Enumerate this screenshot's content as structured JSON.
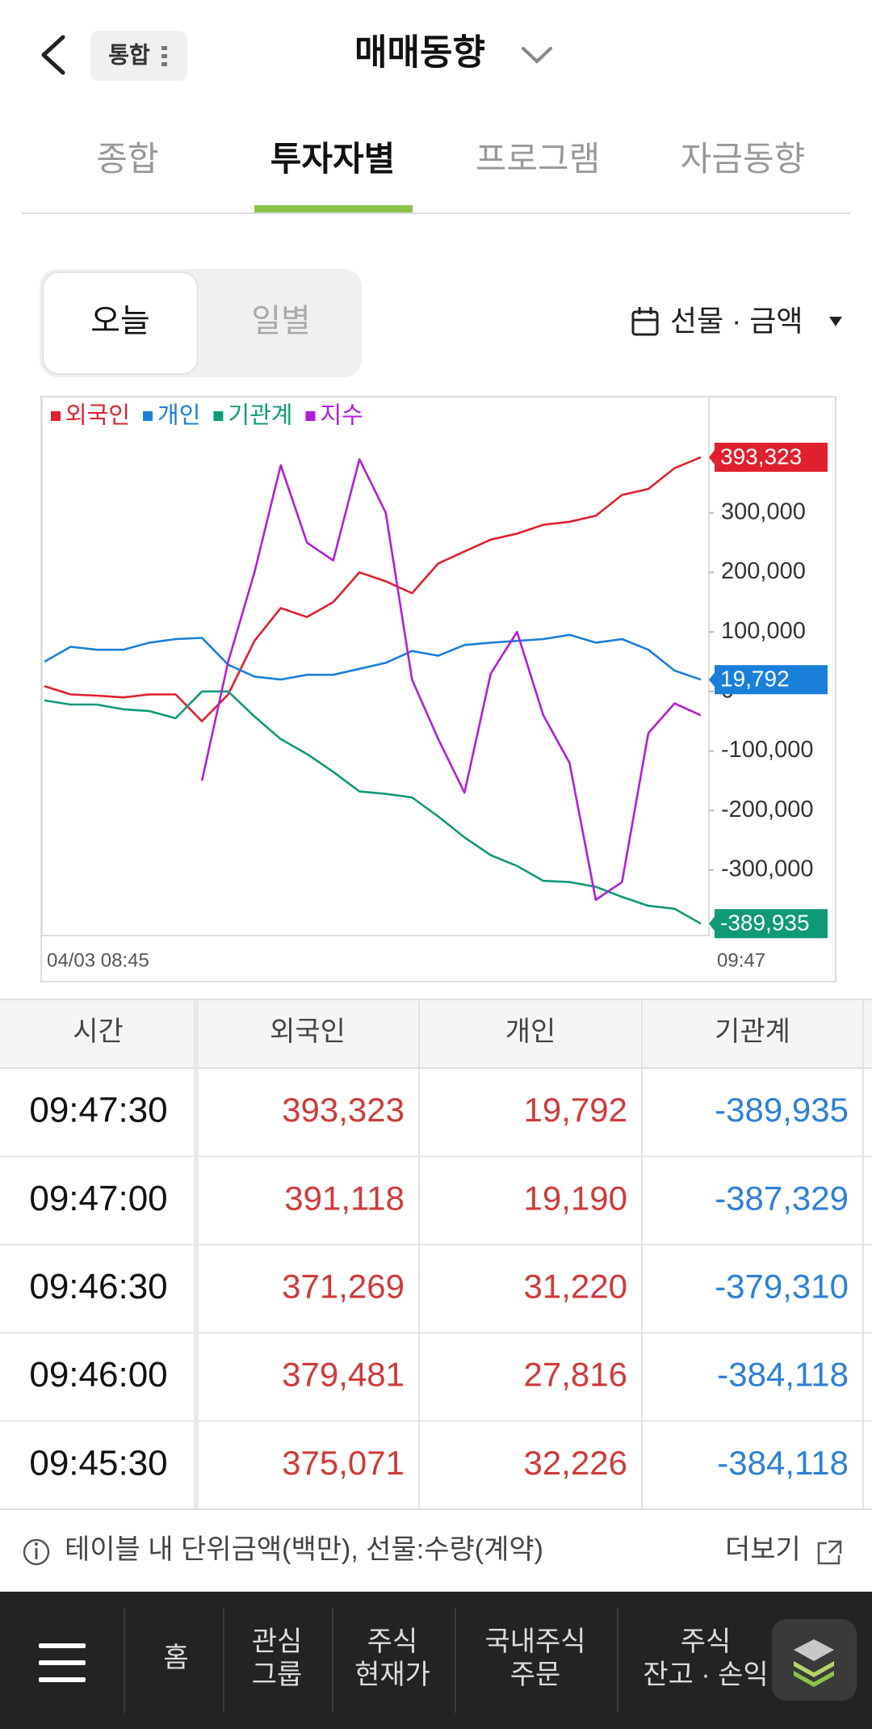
{
  "header": {
    "badge": "통합",
    "title": "매매동향"
  },
  "tabs": [
    "종합",
    "투자자별",
    "프로그램",
    "자금동향"
  ],
  "segment": [
    "오늘",
    "일별"
  ],
  "dropdown": "선물 · 금액",
  "chart_data": {
    "type": "line",
    "categories": [
      "04/03 08:45",
      null,
      null,
      null,
      null,
      null,
      null,
      null,
      null,
      null,
      null,
      null,
      null,
      null,
      null,
      null,
      null,
      null,
      null,
      null,
      null,
      null,
      null,
      null,
      null,
      "09:47"
    ],
    "series": [
      {
        "name": "외국인",
        "color": "#e0202e",
        "values": [
          9000,
          -5000,
          -7000,
          -10000,
          -5000,
          -5000,
          -50000,
          -5000,
          85000,
          140000,
          125000,
          150000,
          200000,
          185000,
          165000,
          215000,
          235000,
          255000,
          265000,
          280000,
          285000,
          295000,
          330000,
          340000,
          375000,
          393323
        ],
        "value_labels": [
          null,
          null,
          null,
          null,
          null,
          null,
          null,
          null,
          null,
          null,
          null,
          null,
          null,
          null,
          null,
          null,
          null,
          null,
          null,
          null,
          null,
          null,
          null,
          null,
          null,
          "393,323"
        ]
      },
      {
        "name": "개인",
        "color": "#1a7fd8",
        "values": [
          50000,
          75000,
          70000,
          70000,
          82000,
          88000,
          90000,
          45000,
          25000,
          20000,
          28000,
          28000,
          38000,
          48000,
          68000,
          60000,
          78000,
          82000,
          85000,
          88000,
          95000,
          82000,
          88000,
          70000,
          35000,
          19792
        ],
        "value_labels": [
          null,
          null,
          null,
          null,
          null,
          null,
          null,
          null,
          null,
          null,
          null,
          null,
          null,
          null,
          null,
          null,
          null,
          null,
          null,
          null,
          null,
          null,
          null,
          null,
          null,
          "19,792"
        ]
      },
      {
        "name": "기관계",
        "color": "#0f9a77",
        "values": [
          -15000,
          -22000,
          -22000,
          -30000,
          -33000,
          -45000,
          0,
          0,
          -42000,
          -80000,
          -105000,
          -135000,
          -168000,
          -172000,
          -178000,
          -210000,
          -245000,
          -275000,
          -293000,
          -318000,
          -320000,
          -328000,
          -345000,
          -360000,
          -365000,
          -389935
        ],
        "value_labels": [
          null,
          null,
          null,
          null,
          null,
          null,
          null,
          null,
          null,
          null,
          null,
          null,
          null,
          null,
          null,
          null,
          null,
          null,
          null,
          null,
          null,
          null,
          null,
          null,
          null,
          "-389,935"
        ]
      },
      {
        "name": "지수",
        "color": "#b21ed8",
        "values": [
          null,
          null,
          null,
          null,
          null,
          null,
          -150000,
          50000,
          200000,
          380000,
          250000,
          220000,
          390000,
          300000,
          20000,
          -80000,
          -170000,
          30000,
          100000,
          -40000,
          -120000,
          -350000,
          -320000,
          -70000,
          -20000,
          -40000
        ]
      }
    ],
    "ylim": [
      -410000,
      495000
    ],
    "yticks": [
      {
        "value": 300000,
        "label": "300,000"
      },
      {
        "value": 200000,
        "label": "200,000"
      },
      {
        "value": 100000,
        "label": "100,000"
      },
      0,
      {
        "value": -100000,
        "label": "-100,000"
      },
      {
        "value": -200000,
        "label": "-200,000"
      },
      {
        "value": -300000,
        "label": "-300,000"
      }
    ],
    "grid": false
  },
  "table": {
    "headers": [
      "시간",
      "외국인",
      "개인",
      "기관계"
    ],
    "rows": [
      [
        "09:47:30",
        "393,323",
        "19,792",
        "-389,935"
      ],
      [
        "09:47:00",
        "391,118",
        "19,190",
        "-387,329"
      ],
      [
        "09:46:30",
        "371,269",
        "31,220",
        "-379,310"
      ],
      [
        "09:46:00",
        "379,481",
        "27,816",
        "-384,118"
      ],
      [
        "09:45:30",
        "375,071",
        "32,226",
        "-384,118"
      ]
    ]
  },
  "note": "테이블 내 단위금액(백만), 선물:수량(계약)",
  "more": "더보기",
  "nav": [
    [
      "홈"
    ],
    [
      "관심",
      "그룹"
    ],
    [
      "주식",
      "현재가"
    ],
    [
      "국내주식",
      "주문"
    ],
    [
      "주식",
      "잔고 · 손익"
    ]
  ]
}
